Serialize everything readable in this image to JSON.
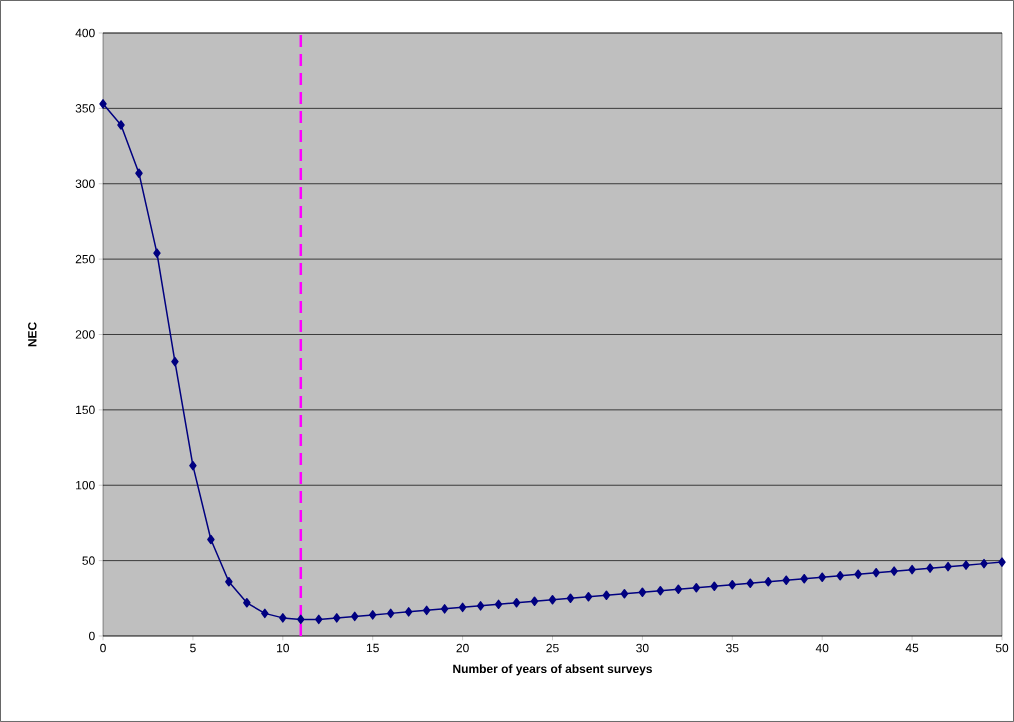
{
  "chart_data": {
    "type": "line",
    "xlabel": "Number of years of absent surveys",
    "ylabel": "NEC",
    "x": [
      0,
      1,
      2,
      3,
      4,
      5,
      6,
      7,
      8,
      9,
      10,
      11,
      12,
      13,
      14,
      15,
      16,
      17,
      18,
      19,
      20,
      21,
      22,
      23,
      24,
      25,
      26,
      27,
      28,
      29,
      30,
      31,
      32,
      33,
      34,
      35,
      36,
      37,
      38,
      39,
      40,
      41,
      42,
      43,
      44,
      45,
      46,
      47,
      48,
      49,
      50
    ],
    "series": [
      {
        "color": "#000080",
        "values": [
          353,
          339,
          307,
          254,
          182,
          113,
          64,
          36,
          22,
          15,
          12,
          11,
          11,
          12,
          13,
          14,
          15,
          16,
          17,
          18,
          19,
          20,
          21,
          22,
          23,
          24,
          25,
          26,
          27,
          28,
          29,
          30,
          31,
          32,
          33,
          34,
          35,
          36,
          37,
          38,
          39,
          40,
          41,
          42,
          43,
          44,
          45,
          46,
          47,
          48,
          49
        ]
      }
    ],
    "xlim": [
      0,
      50
    ],
    "ylim": [
      0,
      400
    ],
    "xticks": [
      0,
      5,
      10,
      15,
      20,
      25,
      30,
      35,
      40,
      45,
      50
    ],
    "yticks": [
      0,
      50,
      100,
      150,
      200,
      250,
      300,
      350,
      400
    ],
    "grid": "y",
    "marker": "diamond",
    "line_style": "solid",
    "ref_lines": [
      {
        "axis": "x",
        "value": 11,
        "color": "#ff00ff",
        "line_style": "dashed"
      }
    ]
  }
}
